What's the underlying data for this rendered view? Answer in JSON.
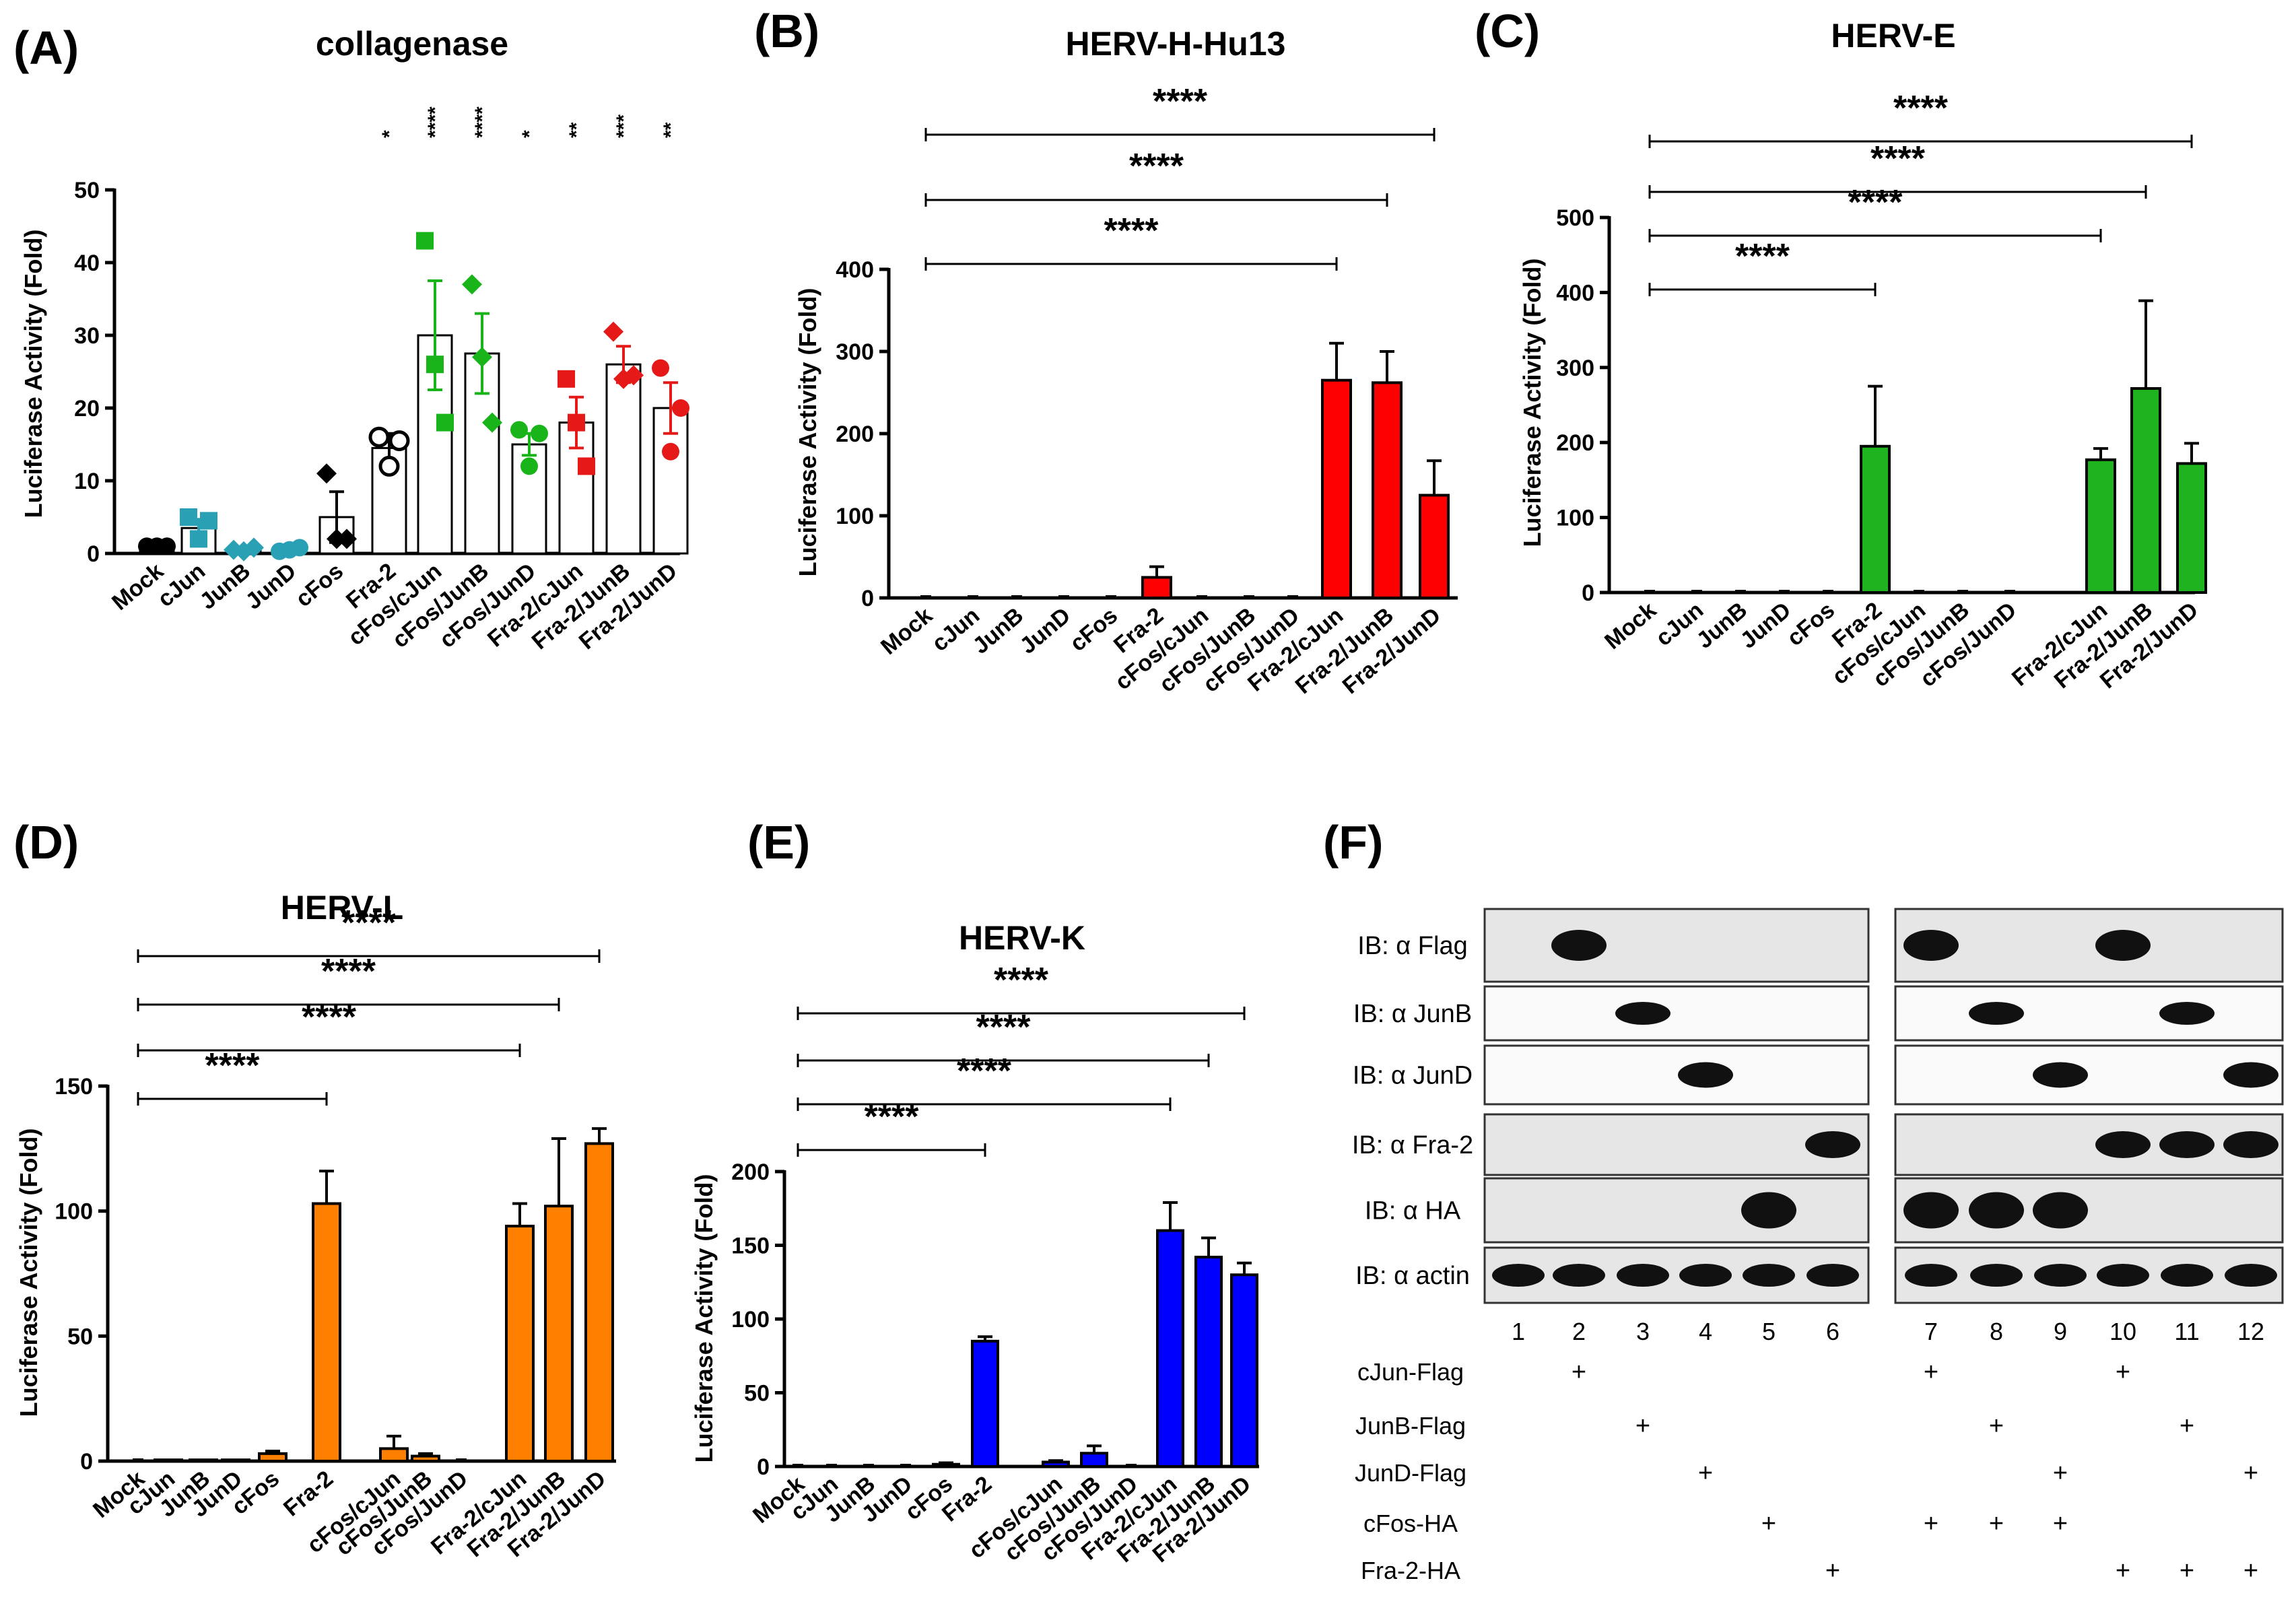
{
  "figure_labels": [
    "(A)",
    "(B)",
    "(C)",
    "(D)",
    "(E)",
    "(F)"
  ],
  "chart_data": [
    {
      "panel": "(A)",
      "type": "bar",
      "title": "collagenase",
      "ylabel": "Luciferase Activity (Fold)",
      "ylim": [
        0,
        50
      ],
      "yticks": [
        0,
        10,
        20,
        30,
        40,
        50
      ],
      "categories": [
        "Mock",
        "cJun",
        "JunB",
        "JunD",
        "cFos",
        "Fra-2",
        "cFos/cJun",
        "cFos/JunB",
        "cFos/JunD",
        "Fra-2/cJun",
        "Fra-2/JunB",
        "Fra-2/JunD"
      ],
      "values": [
        1,
        3.5,
        0.5,
        0.5,
        5,
        14.5,
        30,
        27.5,
        15,
        18,
        26,
        20
      ],
      "errors": [
        0.2,
        1.2,
        0.3,
        0.3,
        3.5,
        2,
        7.5,
        5.5,
        1.5,
        3.5,
        2.5,
        3.5
      ],
      "points": [
        [
          1,
          1,
          1
        ],
        [
          5,
          2,
          4.5
        ],
        [
          0.5,
          0.3,
          0.8
        ],
        [
          0.3,
          0.5,
          0.8
        ],
        [
          11,
          2,
          2
        ],
        [
          16,
          12,
          15.5
        ],
        [
          43,
          26,
          18
        ],
        [
          37,
          27,
          18
        ],
        [
          17,
          12,
          16.5
        ],
        [
          24,
          18,
          12
        ],
        [
          30.5,
          24,
          24.5
        ],
        [
          25.5,
          14,
          20
        ]
      ],
      "bar_fill": "white",
      "point_colors": [
        "#000000",
        "#2aa0b5",
        "#2aa0b5",
        "#2aa0b5",
        "#000000",
        "#000000",
        "#19b419",
        "#19b419",
        "#19b419",
        "#e61919",
        "#e61919",
        "#e61919"
      ],
      "point_shapes": [
        "circle",
        "square",
        "diamond",
        "circle",
        "diamond",
        "circle-open",
        "square",
        "diamond",
        "circle",
        "square",
        "diamond",
        "circle"
      ],
      "significance": [
        {
          "category": "Fra-2",
          "label": "*"
        },
        {
          "category": "cFos/cJun",
          "label": "****"
        },
        {
          "category": "cFos/JunB",
          "label": "****"
        },
        {
          "category": "cFos/JunD",
          "label": "*"
        },
        {
          "category": "Fra-2/cJun",
          "label": "**"
        },
        {
          "category": "Fra-2/JunB",
          "label": "***"
        },
        {
          "category": "Fra-2/JunD",
          "label": "**"
        }
      ]
    },
    {
      "panel": "(B)",
      "type": "bar",
      "title": "HERV-H-Hu13",
      "ylabel": "Luciferase Activity (Fold)",
      "ylim": [
        0,
        400
      ],
      "yticks": [
        0,
        100,
        200,
        300,
        400
      ],
      "categories": [
        "Mock",
        "cJun",
        "JunB",
        "JunD",
        "cFos",
        "Fra-2",
        "cFos/cJun",
        "cFos/JunB",
        "cFos/JunD",
        "Fra-2/cJun",
        "Fra-2/JunB",
        "Fra-2/JunD"
      ],
      "values": [
        0,
        1,
        1,
        1,
        0,
        25,
        1,
        1,
        1,
        265,
        262,
        125
      ],
      "errors": [
        0,
        0,
        0,
        0,
        0,
        13,
        0,
        0,
        0,
        45,
        38,
        42
      ],
      "color": "#ff0000",
      "brackets": [
        {
          "from": "Mock",
          "to": "Fra-2/cJun",
          "label": "****"
        },
        {
          "from": "Mock",
          "to": "Fra-2/JunB",
          "label": "****"
        },
        {
          "from": "Mock",
          "to": "Fra-2/JunD",
          "label": "****"
        }
      ]
    },
    {
      "panel": "(C)",
      "type": "bar",
      "title": "HERV-E",
      "ylabel": "Luciferase Activity (Fold)",
      "ylim": [
        0,
        500
      ],
      "yticks": [
        0,
        100,
        200,
        300,
        400,
        500
      ],
      "categories": [
        "Mock",
        "cJun",
        "JunB",
        "JunD",
        "cFos",
        "Fra-2",
        "cFos/cJun",
        "cFos/JunB",
        "cFos/JunD",
        "Fra-2/cJun",
        "Fra-2/JunB",
        "Fra-2/JunD"
      ],
      "values": [
        0,
        1,
        1,
        1,
        1,
        195,
        1,
        1,
        1,
        177,
        272,
        172
      ],
      "errors": [
        0,
        0,
        0,
        0,
        0,
        80,
        0,
        0,
        0,
        15,
        117,
        27
      ],
      "color": "#1fb41f",
      "brackets": [
        {
          "from": "Mock",
          "to": "Fra-2",
          "label": "****"
        },
        {
          "from": "Mock",
          "to": "Fra-2/cJun",
          "label": "****"
        },
        {
          "from": "Mock",
          "to": "Fra-2/JunB",
          "label": "****"
        },
        {
          "from": "Mock",
          "to": "Fra-2/JunD",
          "label": "****"
        }
      ]
    },
    {
      "panel": "(D)",
      "type": "bar",
      "title": "HERV-L",
      "ylabel": "Luciferase Activity (Fold)",
      "ylim": [
        0,
        150
      ],
      "yticks": [
        0,
        50,
        100,
        150
      ],
      "categories": [
        "Mock",
        "cJun",
        "JunB",
        "JunD",
        "cFos",
        "Fra-2",
        "cFos/cJun",
        "cFos/JunB",
        "cFos/JunD",
        "Fra-2/cJun",
        "Fra-2/JunB",
        "Fra-2/JunD"
      ],
      "values": [
        0,
        0.5,
        0.5,
        0.5,
        3,
        103,
        5,
        2,
        0.3,
        94,
        102,
        127
      ],
      "errors": [
        0,
        0,
        0,
        0,
        1,
        13,
        5,
        1,
        0,
        9,
        27,
        6
      ],
      "color": "#ff8000",
      "brackets": [
        {
          "from": "Mock",
          "to": "Fra-2",
          "label": "****"
        },
        {
          "from": "Mock",
          "to": "Fra-2/cJun",
          "label": "****"
        },
        {
          "from": "Mock",
          "to": "Fra-2/JunB",
          "label": "****"
        },
        {
          "from": "Mock",
          "to": "Fra-2/JunD",
          "label": "****"
        }
      ]
    },
    {
      "panel": "(E)",
      "type": "bar",
      "title": "HERV-K",
      "ylabel": "Luciferase Activity (Fold)",
      "ylim": [
        0,
        200
      ],
      "yticks": [
        0,
        50,
        100,
        150,
        200
      ],
      "categories": [
        "Mock",
        "cJun",
        "JunB",
        "JunD",
        "cFos",
        "Fra-2",
        "cFos/cJun",
        "cFos/JunB",
        "cFos/JunD",
        "Fra-2/cJun",
        "Fra-2/JunB",
        "Fra-2/JunD"
      ],
      "values": [
        0,
        0.5,
        0.5,
        0.5,
        1.5,
        85,
        3,
        9,
        0.5,
        160,
        142,
        130
      ],
      "errors": [
        0,
        0,
        0,
        0,
        1,
        3,
        1,
        5,
        0,
        19,
        13,
        8
      ],
      "color": "#0000ff",
      "brackets": [
        {
          "from": "Mock",
          "to": "Fra-2",
          "label": "****"
        },
        {
          "from": "Mock",
          "to": "Fra-2/cJun",
          "label": "****"
        },
        {
          "from": "Mock",
          "to": "Fra-2/JunB",
          "label": "****"
        },
        {
          "from": "Mock",
          "to": "Fra-2/JunD",
          "label": "****"
        }
      ]
    }
  ],
  "western_blot": {
    "panel": "(F)",
    "rows": [
      {
        "label": "IB: α Flag",
        "bands": [
          2,
          7,
          10
        ]
      },
      {
        "label": "IB: α JunB",
        "bands": [
          3,
          8,
          11
        ]
      },
      {
        "label": "IB: α JunD",
        "bands": [
          4,
          9,
          12
        ]
      },
      {
        "label": "IB: α Fra-2",
        "bands": [
          6,
          10,
          11,
          12
        ]
      },
      {
        "label": "IB: α HA",
        "bands": [
          5,
          7,
          8,
          9
        ]
      },
      {
        "label": "IB: α actin",
        "bands": [
          1,
          2,
          3,
          4,
          5,
          6,
          7,
          8,
          9,
          10,
          11,
          12
        ]
      }
    ],
    "lanes": [
      "1",
      "2",
      "3",
      "4",
      "5",
      "6",
      "7",
      "8",
      "9",
      "10",
      "11",
      "12"
    ],
    "conditions": [
      {
        "label": "cJun-Flag",
        "lanes": [
          2,
          7,
          10
        ]
      },
      {
        "label": "JunB-Flag",
        "lanes": [
          3,
          8,
          11
        ]
      },
      {
        "label": "JunD-Flag",
        "lanes": [
          4,
          9,
          12
        ]
      },
      {
        "label": "cFos-HA",
        "lanes": [
          5,
          7,
          8,
          9
        ]
      },
      {
        "label": "Fra-2-HA",
        "lanes": [
          6,
          10,
          11,
          12
        ]
      }
    ],
    "plus_symbol": "+"
  }
}
